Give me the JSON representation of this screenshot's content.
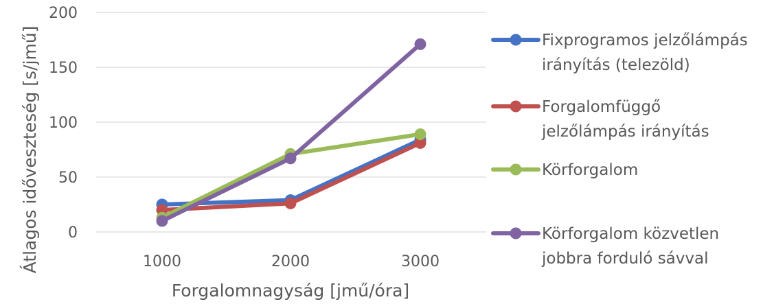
{
  "chart_data": {
    "type": "line",
    "xlabel": "Forgalomnagyság [jmű/óra]",
    "ylabel": "Átlagos idő­veszteség  [s/jmű]",
    "categories": [
      "1000",
      "2000",
      "3000"
    ],
    "ylim": [
      0,
      200
    ],
    "yticks": [
      "0",
      "50",
      "100",
      "150",
      "200"
    ],
    "grid": true,
    "legend_position": "right",
    "series": [
      {
        "name_lines": [
          "Fixprogramos jelzőlámpás",
          "irányítás (telezöld)"
        ],
        "values": [
          25,
          29,
          84
        ],
        "color": "#4472C4"
      },
      {
        "name_lines": [
          "Forgalomfüggő",
          "jelzőlámpás irányítás"
        ],
        "values": [
          20,
          26,
          81
        ],
        "color": "#C0504D"
      },
      {
        "name_lines": [
          "Körforgalom"
        ],
        "values": [
          13,
          71,
          89
        ],
        "color": "#9BBB59"
      },
      {
        "name_lines": [
          "Körforgalom közvetlen",
          "jobbra forduló sávval"
        ],
        "values": [
          10,
          67,
          171
        ],
        "color": "#8064A2"
      }
    ]
  }
}
